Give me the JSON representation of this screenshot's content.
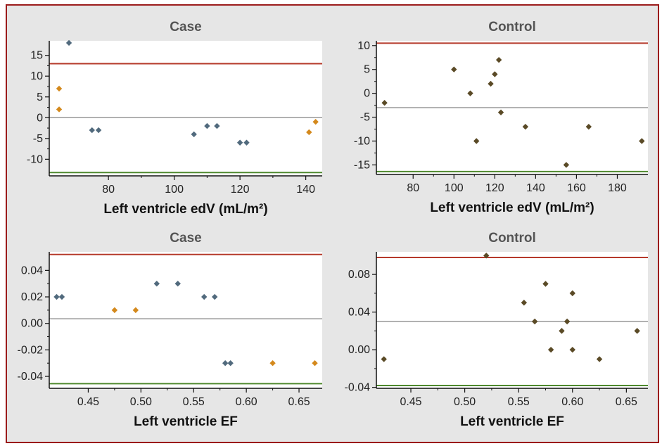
{
  "chart_data": [
    {
      "type": "scatter",
      "title": "Case",
      "xlabel": "Left ventricle edV (mL/m²)",
      "ylabel": "",
      "xlim": [
        62,
        145
      ],
      "ylim": [
        -14,
        18.5
      ],
      "xticks": [
        80,
        100,
        120,
        140
      ],
      "yticks": [
        -10,
        -5,
        0,
        5,
        10,
        15
      ],
      "xtick_labels": [
        "80",
        "100",
        "120",
        "140"
      ],
      "ytick_labels": [
        "-10",
        "-5",
        "0",
        "5",
        "10",
        "15"
      ],
      "lines": [
        {
          "y": 13,
          "color": "#b5392a"
        },
        {
          "y": 0,
          "color": "#999999"
        },
        {
          "y": -13.2,
          "color": "#4f8a2e"
        }
      ],
      "series": [
        {
          "color": "#516a7d",
          "points": [
            [
              68,
              18
            ],
            [
              75,
              -3
            ],
            [
              77,
              -3
            ],
            [
              106,
              -4
            ],
            [
              110,
              -2
            ],
            [
              113,
              -2
            ],
            [
              120,
              -6
            ],
            [
              122,
              -6
            ]
          ]
        },
        {
          "color": "#d4891c",
          "points": [
            [
              65,
              7
            ],
            [
              65,
              2
            ],
            [
              141,
              -3.5
            ],
            [
              143,
              -1
            ]
          ]
        }
      ]
    },
    {
      "type": "scatter",
      "title": "Control",
      "xlabel": "Left ventricle edV (mL/m²)",
      "ylabel": "",
      "xlim": [
        62,
        195
      ],
      "ylim": [
        -17,
        11
      ],
      "xticks": [
        80,
        100,
        120,
        140,
        160,
        180
      ],
      "yticks": [
        -15,
        -10,
        -5,
        0,
        5,
        10
      ],
      "xtick_labels": [
        "80",
        "100",
        "120",
        "140",
        "160",
        "180"
      ],
      "ytick_labels": [
        "-15",
        "-10",
        "-5",
        "0",
        "5",
        "10"
      ],
      "lines": [
        {
          "y": 10.5,
          "color": "#b5392a"
        },
        {
          "y": -3,
          "color": "#999999"
        },
        {
          "y": -16.4,
          "color": "#4f8a2e"
        }
      ],
      "series": [
        {
          "color": "#5a4a26",
          "points": [
            [
              66,
              -2
            ],
            [
              100,
              5
            ],
            [
              108,
              0
            ],
            [
              111,
              -10
            ],
            [
              118,
              2
            ],
            [
              120,
              4
            ],
            [
              122,
              7
            ],
            [
              123,
              -4
            ],
            [
              135,
              -7
            ],
            [
              155,
              -15
            ],
            [
              166,
              -7
            ],
            [
              192,
              -10
            ]
          ]
        }
      ]
    },
    {
      "type": "scatter",
      "title": "Case",
      "xlabel": "Left ventricle EF",
      "ylabel": "",
      "xlim": [
        0.413,
        0.672
      ],
      "ylim": [
        -0.049,
        0.054
      ],
      "xticks": [
        0.45,
        0.5,
        0.55,
        0.6,
        0.65
      ],
      "yticks": [
        -0.04,
        -0.02,
        0.0,
        0.02,
        0.04
      ],
      "xtick_labels": [
        "0.45",
        "0.50",
        "0.55",
        "0.60",
        "0.65"
      ],
      "ytick_labels": [
        "-0.04",
        "-0.02",
        "0.00",
        "0.02",
        "0.04"
      ],
      "lines": [
        {
          "y": 0.052,
          "color": "#b5392a"
        },
        {
          "y": 0.0035,
          "color": "#999999"
        },
        {
          "y": -0.0455,
          "color": "#4f8a2e"
        }
      ],
      "series": [
        {
          "color": "#516a7d",
          "points": [
            [
              0.42,
              0.02
            ],
            [
              0.425,
              0.02
            ],
            [
              0.515,
              0.03
            ],
            [
              0.535,
              0.03
            ],
            [
              0.56,
              0.02
            ],
            [
              0.57,
              0.02
            ],
            [
              0.58,
              -0.03
            ],
            [
              0.585,
              -0.03
            ]
          ]
        },
        {
          "color": "#d4891c",
          "points": [
            [
              0.475,
              0.01
            ],
            [
              0.495,
              0.01
            ],
            [
              0.625,
              -0.03
            ],
            [
              0.665,
              -0.03
            ]
          ]
        }
      ]
    },
    {
      "type": "scatter",
      "title": "Control",
      "xlabel": "Left ventricle EF",
      "ylabel": "",
      "xlim": [
        0.418,
        0.67
      ],
      "ylim": [
        -0.041,
        0.104
      ],
      "xticks": [
        0.45,
        0.5,
        0.55,
        0.6,
        0.65
      ],
      "yticks": [
        -0.04,
        0.0,
        0.04,
        0.08
      ],
      "xtick_labels": [
        "0.45",
        "0.50",
        "0.55",
        "0.60",
        "0.65"
      ],
      "ytick_labels": [
        "-0.04",
        "0.00",
        "0.04",
        "0.08"
      ],
      "lines": [
        {
          "y": 0.098,
          "color": "#b5392a"
        },
        {
          "y": 0.03,
          "color": "#999999"
        },
        {
          "y": -0.038,
          "color": "#4f8a2e"
        }
      ],
      "series": [
        {
          "color": "#5a4a26",
          "points": [
            [
              0.425,
              -0.01
            ],
            [
              0.52,
              0.1
            ],
            [
              0.555,
              0.05
            ],
            [
              0.565,
              0.03
            ],
            [
              0.575,
              0.07
            ],
            [
              0.58,
              0.0
            ],
            [
              0.59,
              0.02
            ],
            [
              0.595,
              0.03
            ],
            [
              0.6,
              0.06
            ],
            [
              0.6,
              0.0
            ],
            [
              0.625,
              -0.01
            ],
            [
              0.66,
              0.02
            ]
          ]
        }
      ]
    }
  ]
}
